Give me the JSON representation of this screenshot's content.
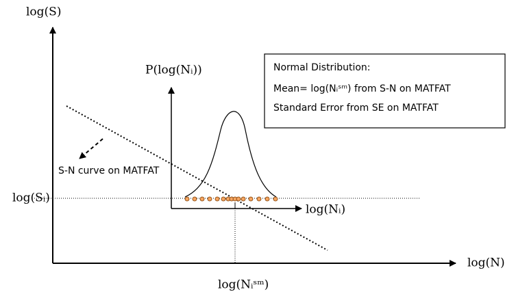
{
  "labels": {
    "y_axis": "log(S)",
    "stress_level": "log(Sᵢ)",
    "x_axis": "log(N)",
    "median_life": "log(Nᵢˢᵐ)",
    "pdf_y_axis": "P(log(Nᵢ))",
    "pdf_x_axis": "log(Nᵢ)",
    "curve": "S-N curve on MATFAT"
  },
  "box": {
    "title": "Normal Distribution:",
    "mean": "Mean= log(Nᵢˢᵐ)  from S-N on MATFAT",
    "error": "Standard Error from SE on MATFAT"
  }
}
